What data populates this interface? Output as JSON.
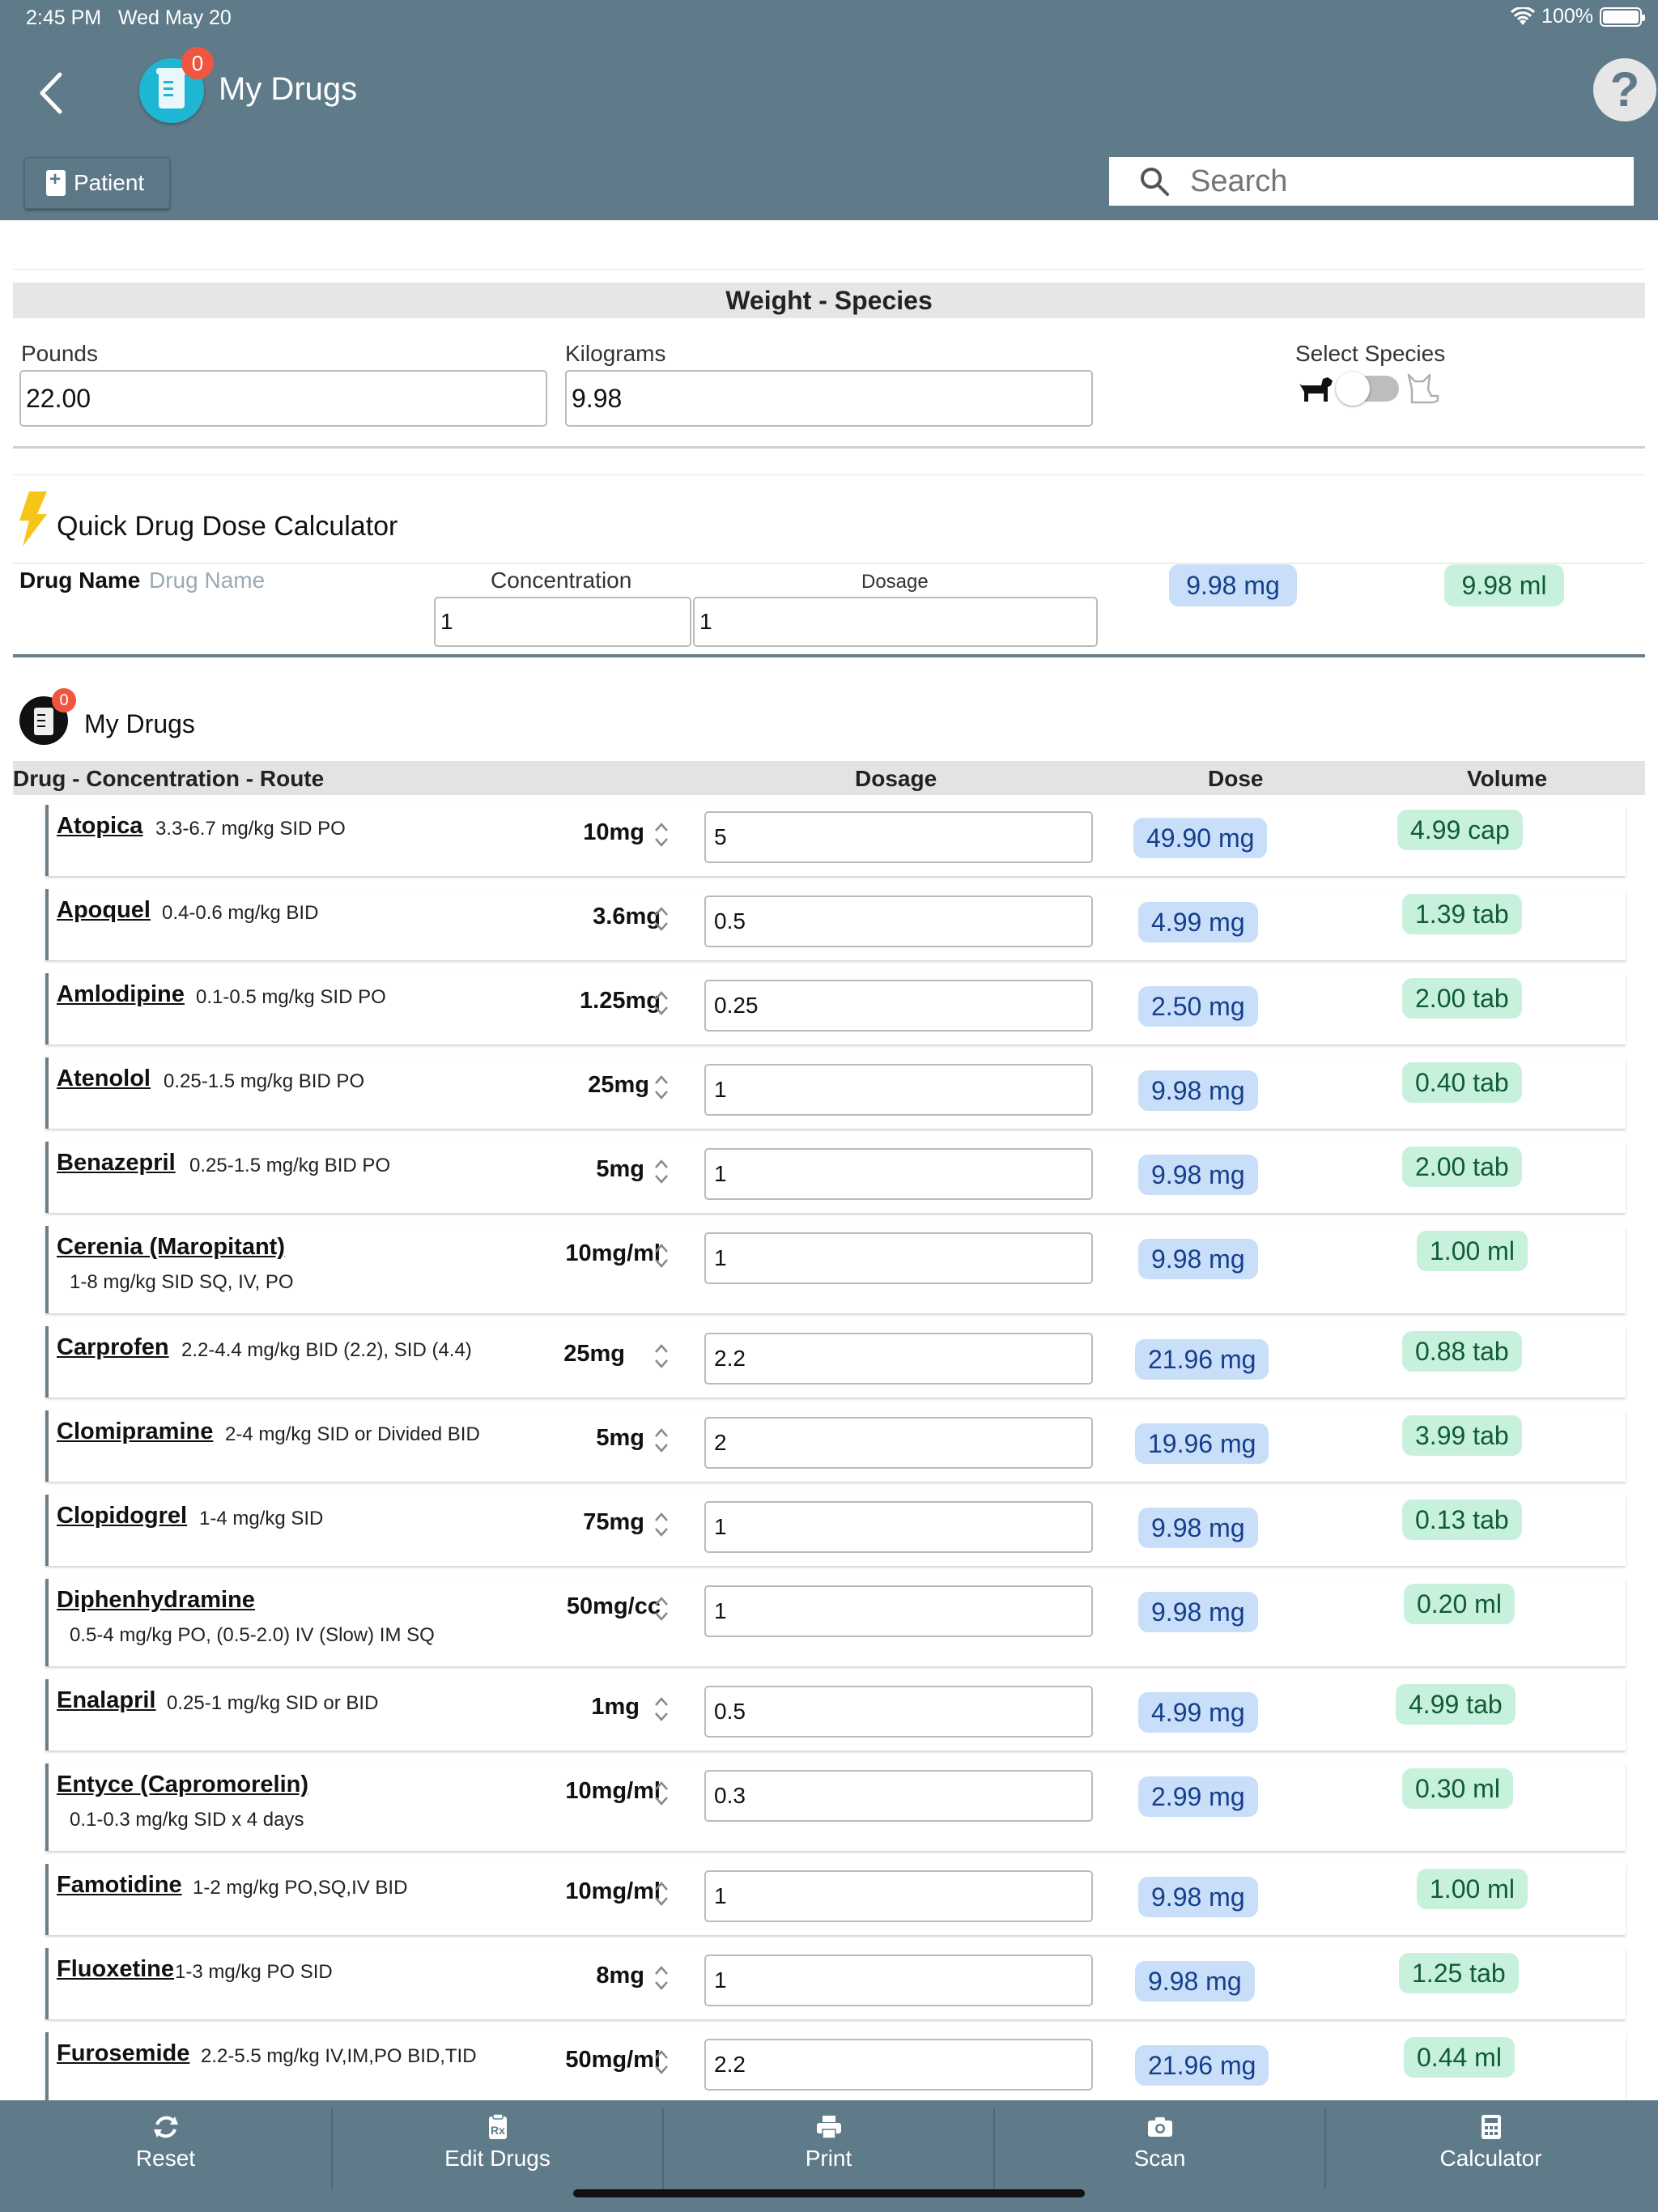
{
  "status_bar": {
    "time": "2:45 PM",
    "date": "Wed May 20",
    "battery": "100%"
  },
  "header": {
    "title": "My Drugs",
    "badge_count": "0",
    "patient_label": "Patient",
    "search_placeholder": "Search",
    "help_glyph": "?"
  },
  "weight_species": {
    "title": "Weight - Species",
    "pounds_label": "Pounds",
    "pounds_value": "22.00",
    "kilograms_label": "Kilograms",
    "kilograms_value": "9.98",
    "species_label": "Select Species",
    "selected_species": "dog"
  },
  "quick_calc": {
    "title": "Quick Drug Dose Calculator",
    "drug_name_label": "Drug Name",
    "drug_name_placeholder": "Drug Name",
    "concentration_label": "Concentration",
    "concentration_value": "1",
    "dosage_label": "Dosage",
    "dosage_value": "1",
    "dose_result": "9.98 mg",
    "volume_result": "9.98 ml"
  },
  "my_drugs": {
    "title": "My Drugs",
    "badge_count": "0",
    "columns": [
      "Drug - Concentration - Route",
      "Dosage",
      "Dose",
      "Volume"
    ],
    "rows": [
      {
        "name": "Atopica",
        "range": "3.3-6.7 mg/kg SID PO",
        "conc": "10mg",
        "dosage": "5",
        "dose": "49.90 mg",
        "volume": "4.99 cap"
      },
      {
        "name": "Apoquel",
        "range": "0.4-0.6 mg/kg BID",
        "conc": "3.6mg",
        "dosage": "0.5",
        "dose": "4.99 mg",
        "volume": "1.39 tab"
      },
      {
        "name": "Amlodipine",
        "range": "0.1-0.5 mg/kg SID PO",
        "conc": "1.25mg",
        "dosage": "0.25",
        "dose": "2.50 mg",
        "volume": "2.00 tab"
      },
      {
        "name": "Atenolol",
        "range": "0.25-1.5 mg/kg BID PO",
        "conc": "25mg",
        "dosage": "1",
        "dose": "9.98 mg",
        "volume": "0.40 tab"
      },
      {
        "name": "Benazepril",
        "range": "0.25-1.5 mg/kg BID PO",
        "conc": "5mg",
        "dosage": "1",
        "dose": "9.98 mg",
        "volume": "2.00 tab"
      },
      {
        "name": "Cerenia (Maropitant)",
        "range": "1-8 mg/kg SID SQ, IV, PO",
        "conc": "10mg/ml",
        "dosage": "1",
        "dose": "9.98 mg",
        "volume": "1.00 ml"
      },
      {
        "name": "Carprofen",
        "range": "2.2-4.4 mg/kg BID (2.2), SID (4.4)",
        "conc": "25mg",
        "dosage": "2.2",
        "dose": "21.96 mg",
        "volume": "0.88 tab"
      },
      {
        "name": "Clomipramine",
        "range": "2-4 mg/kg SID or Divided BID",
        "conc": "5mg",
        "dosage": "2",
        "dose": "19.96 mg",
        "volume": "3.99 tab"
      },
      {
        "name": "Clopidogrel",
        "range": "1-4 mg/kg SID",
        "conc": "75mg",
        "dosage": "1",
        "dose": "9.98 mg",
        "volume": "0.13 tab"
      },
      {
        "name": "Diphenhydramine",
        "range": "0.5-4 mg/kg PO, (0.5-2.0) IV (Slow) IM SQ",
        "conc": "50mg/cc",
        "dosage": "1",
        "dose": "9.98 mg",
        "volume": "0.20 ml"
      },
      {
        "name": "Enalapril",
        "range": "0.25-1 mg/kg SID or BID",
        "conc": "1mg",
        "dosage": "0.5",
        "dose": "4.99 mg",
        "volume": "4.99 tab"
      },
      {
        "name": "Entyce (Capromorelin)",
        "range": "0.1-0.3 mg/kg SID x 4 days",
        "conc": "10mg/ml",
        "dosage": "0.3",
        "dose": "2.99 mg",
        "volume": "0.30 ml"
      },
      {
        "name": "Famotidine",
        "range": "1-2 mg/kg PO,SQ,IV BID",
        "conc": "10mg/ml",
        "dosage": "1",
        "dose": "9.98 mg",
        "volume": "1.00 ml"
      },
      {
        "name": "Fluoxetine",
        "range": "1-3 mg/kg PO SID",
        "conc": "8mg",
        "dosage": "1",
        "dose": "9.98 mg",
        "volume": "1.25 tab"
      },
      {
        "name": "Furosemide",
        "range": "2.2-5.5 mg/kg IV,IM,PO BID,TID",
        "conc": "50mg/ml",
        "dosage": "2.2",
        "dose": "21.96 mg",
        "volume": "0.44 ml"
      }
    ]
  },
  "tabbar": {
    "tabs": [
      {
        "label": "Reset",
        "icon": "reset-icon"
      },
      {
        "label": "Edit Drugs",
        "icon": "edit-drugs-icon"
      },
      {
        "label": "Print",
        "icon": "print-icon"
      },
      {
        "label": "Scan",
        "icon": "camera-icon"
      },
      {
        "label": "Calculator",
        "icon": "calculator-icon"
      }
    ]
  },
  "colors": {
    "header_bg": "#5f7b8a",
    "dose_pill_bg": "#c9def9",
    "volume_pill_bg": "#c8f1dd",
    "badge": "#f0563f"
  }
}
